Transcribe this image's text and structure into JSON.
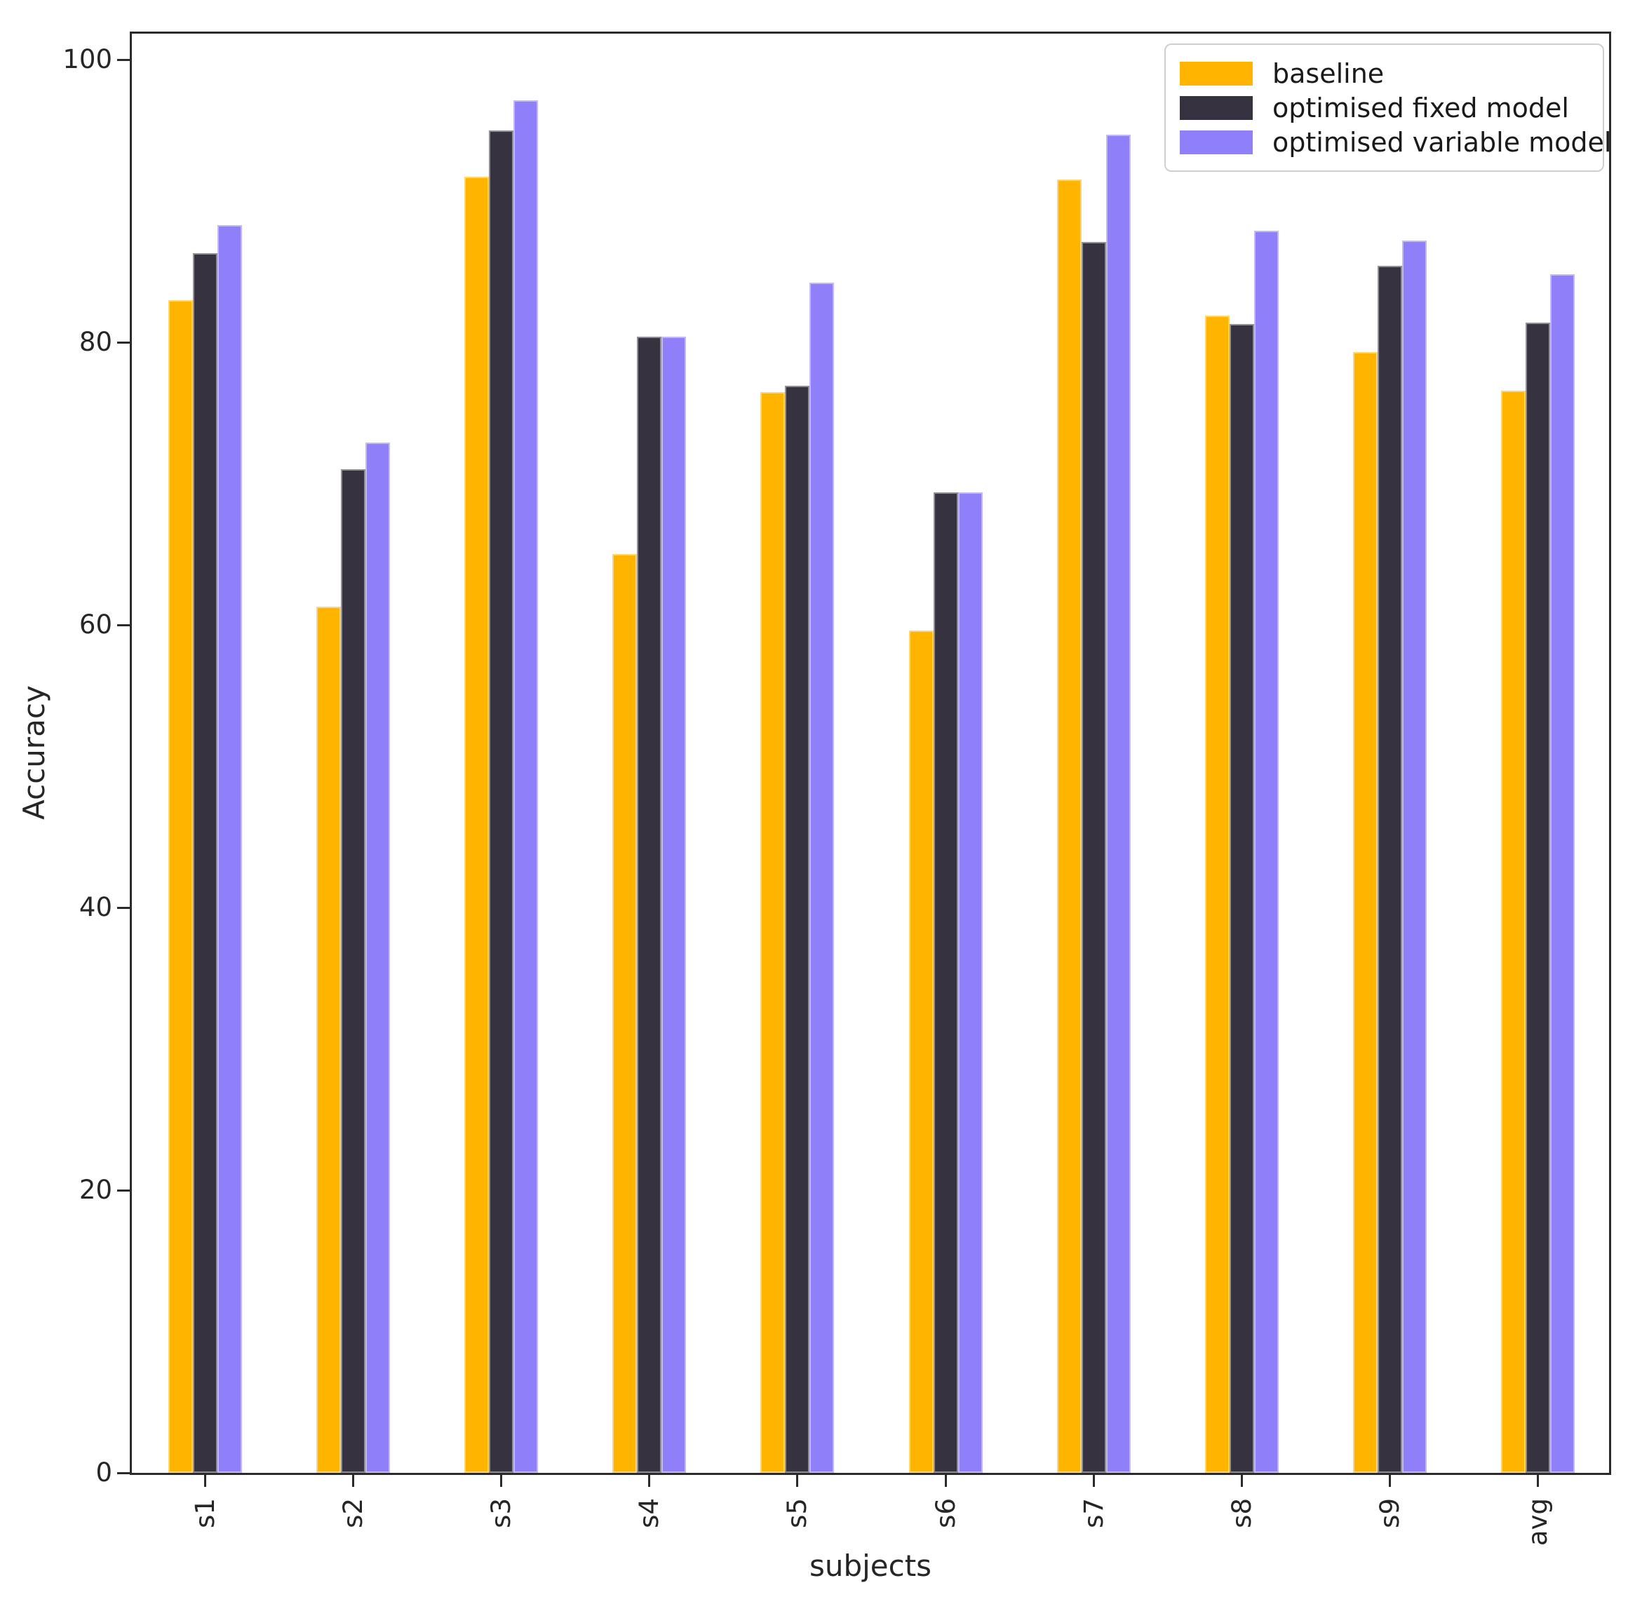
{
  "chart_data": {
    "type": "bar",
    "title": "",
    "xlabel": "subjects",
    "ylabel": "Accuracy",
    "categories": [
      "s1",
      "s2",
      "s3",
      "s4",
      "s5",
      "s6",
      "s7",
      "s8",
      "s9",
      "avg"
    ],
    "series": [
      {
        "name": "baseline",
        "color": "#FFB400",
        "values": [
          83.0,
          61.3,
          91.7,
          65.0,
          76.5,
          59.6,
          91.5,
          81.9,
          79.3,
          76.6
        ]
      },
      {
        "name": "optimised fixed model",
        "color": "#373240",
        "values": [
          86.3,
          71.0,
          95.0,
          80.4,
          76.9,
          69.4,
          87.1,
          81.3,
          85.4,
          81.4
        ]
      },
      {
        "name": "optimised variable model",
        "color": "#8F80FA",
        "values": [
          88.3,
          72.9,
          97.1,
          80.4,
          84.2,
          69.4,
          94.7,
          87.9,
          87.2,
          84.8
        ]
      }
    ],
    "ylim": [
      0,
      102
    ],
    "yticks": [
      0,
      20,
      40,
      60,
      80,
      100
    ],
    "ytick_labels": [
      "0",
      "20",
      "40",
      "60",
      "80",
      "100"
    ],
    "legend_position": "upper right",
    "grid": false
  },
  "colors": {
    "background": "#ffffff",
    "spine": "#2b2b2b",
    "text": "#262626",
    "legend_border": "#cfcfcf"
  }
}
